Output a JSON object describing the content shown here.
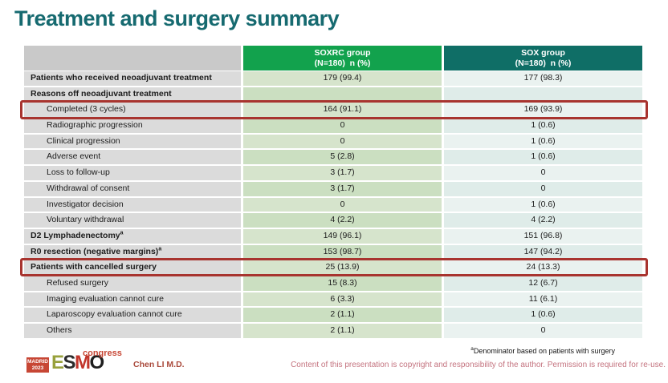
{
  "title": "Treatment and surgery summary",
  "colors": {
    "title_color": "#166a70",
    "soxrc_header": "#12a24d",
    "sox_header": "#0f6e66",
    "highlight_border": "#a8342f",
    "author_color": "#aa4a3c",
    "copyright_color": "#c4737f"
  },
  "table": {
    "columns": [
      {
        "label": "",
        "sub": ""
      },
      {
        "label": "SOXRC group",
        "sub": "(N=180)  n (%)"
      },
      {
        "label": "SOX group",
        "sub": "(N=180)  n (%)"
      }
    ],
    "rows": [
      {
        "label": "Patients who received neoadjuvant treatment",
        "bold": true,
        "indent": false,
        "highlight": false,
        "soxrc": "179 (99.4)",
        "sox": "177 (98.3)"
      },
      {
        "label": "Reasons off neoadjuvant treatment",
        "bold": true,
        "indent": false,
        "highlight": false,
        "soxrc": "",
        "sox": ""
      },
      {
        "label": "Completed (3 cycles)",
        "bold": false,
        "indent": true,
        "highlight": true,
        "soxrc": "164 (91.1)",
        "sox": "169 (93.9)"
      },
      {
        "label": "Radiographic progression",
        "bold": false,
        "indent": true,
        "highlight": false,
        "soxrc": "0",
        "sox": "1 (0.6)"
      },
      {
        "label": "Clinical progression",
        "bold": false,
        "indent": true,
        "highlight": false,
        "soxrc": "0",
        "sox": "1 (0.6)"
      },
      {
        "label": "Adverse event",
        "bold": false,
        "indent": true,
        "highlight": false,
        "soxrc": "5 (2.8)",
        "sox": "1 (0.6)"
      },
      {
        "label": "Loss to follow-up",
        "bold": false,
        "indent": true,
        "highlight": false,
        "soxrc": "3 (1.7)",
        "sox": "0"
      },
      {
        "label": "Withdrawal of consent",
        "bold": false,
        "indent": true,
        "highlight": false,
        "soxrc": "3 (1.7)",
        "sox": "0"
      },
      {
        "label": "Investigator decision",
        "bold": false,
        "indent": true,
        "highlight": false,
        "soxrc": "0",
        "sox": "1 (0.6)"
      },
      {
        "label": "Voluntary withdrawal",
        "bold": false,
        "indent": true,
        "highlight": false,
        "soxrc": "4 (2.2)",
        "sox": "4 (2.2)"
      },
      {
        "label": "D2 Lymphadenectomy",
        "label_sup": "a",
        "bold": true,
        "indent": false,
        "highlight": false,
        "soxrc": "149 (96.1)",
        "sox": "151 (96.8)"
      },
      {
        "label": "R0 resection (negative margins)",
        "label_sup": "a",
        "bold": true,
        "indent": false,
        "highlight": false,
        "soxrc": "153 (98.7)",
        "sox": "147 (94.2)"
      },
      {
        "label": "Patients with cancelled surgery",
        "bold": true,
        "indent": false,
        "highlight": true,
        "soxrc": "25 (13.9)",
        "sox": "24 (13.3)"
      },
      {
        "label": "Refused surgery",
        "bold": false,
        "indent": true,
        "highlight": false,
        "soxrc": "15 (8.3)",
        "sox": "12 (6.7)"
      },
      {
        "label": "Imaging evaluation cannot cure",
        "bold": false,
        "indent": true,
        "highlight": false,
        "soxrc": "6 (3.3)",
        "sox": "11 (6.1)"
      },
      {
        "label": "Laparoscopy evaluation cannot cure",
        "bold": false,
        "indent": true,
        "highlight": false,
        "soxrc": "2 (1.1)",
        "sox": "1 (0.6)"
      },
      {
        "label": "Others",
        "bold": false,
        "indent": true,
        "highlight": false,
        "soxrc": "2 (1.1)",
        "sox": "0"
      }
    ]
  },
  "footnote": {
    "sup": "a",
    "text": "Denominator based on patients with surgery"
  },
  "footer": {
    "logo": {
      "badge_line1": "MADRID",
      "badge_line2": "2023",
      "letters": [
        "E",
        "S",
        "M",
        "O"
      ],
      "congress": "congress"
    },
    "author": "Chen LI M.D.",
    "copyright": "Content of this presentation is copyright and responsibility of the author.  Permission is required for re-use."
  }
}
